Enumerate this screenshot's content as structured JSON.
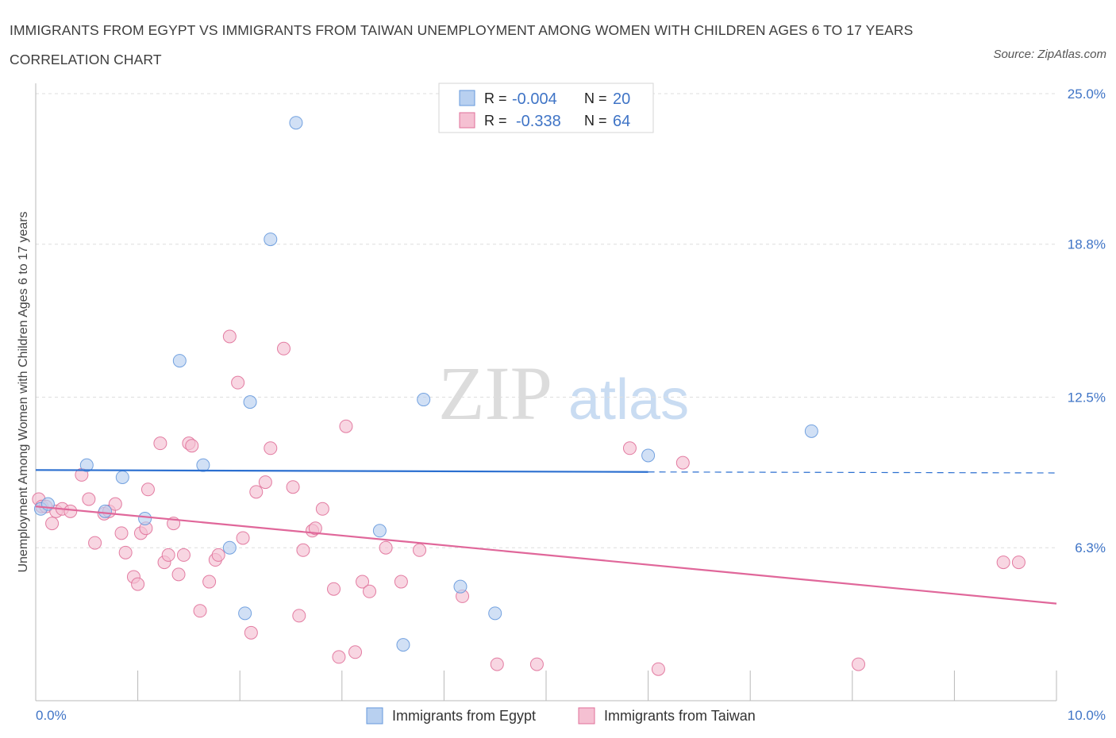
{
  "title": "IMMIGRANTS FROM EGYPT VS IMMIGRANTS FROM TAIWAN UNEMPLOYMENT AMONG WOMEN WITH CHILDREN AGES 6 TO 17 YEARS CORRELATION CHART",
  "source": "Source: ZipAtlas.com",
  "watermark": {
    "zip": "ZIP",
    "atlas": "atlas"
  },
  "colors": {
    "egypt": "#6699dd",
    "egypt_fill": "#b8d0f0",
    "taiwan": "#e07099",
    "taiwan_fill": "#f5c0d2",
    "axis_text": "#3f74c6"
  },
  "legend": {
    "egypt": {
      "r_label": "R =",
      "r_value": "-0.004",
      "n_label": "N =",
      "n_value": "20"
    },
    "taiwan": {
      "r_label": "R =",
      "r_value": "-0.338",
      "n_label": "N =",
      "n_value": "64"
    }
  },
  "chart_data": {
    "type": "scatter",
    "title": "IMMIGRANTS FROM EGYPT VS IMMIGRANTS FROM TAIWAN UNEMPLOYMENT AMONG WOMEN WITH CHILDREN AGES 6 TO 17 YEARS CORRELATION CHART",
    "xlabel": "",
    "ylabel": "Unemployment Among Women with Children Ages 6 to 17 years",
    "xlim": [
      0,
      10
    ],
    "ylim": [
      0,
      25
    ],
    "x_tick_labels": [
      "0.0%",
      "10.0%"
    ],
    "y_ticks": [
      6.3,
      12.5,
      18.8,
      25.0
    ],
    "y_tick_labels": [
      "6.3%",
      "12.5%",
      "18.8%",
      "25.0%"
    ],
    "grid": true,
    "legend_position": "top-center",
    "series": [
      {
        "name": "Immigrants from Egypt",
        "x": [
          0.05,
          0.12,
          0.5,
          0.68,
          0.85,
          1.07,
          1.41,
          1.64,
          1.9,
          2.1,
          2.05,
          2.3,
          2.55,
          3.6,
          3.37,
          3.8,
          4.5,
          4.16,
          6.0,
          7.6
        ],
        "y": [
          7.9,
          8.1,
          9.7,
          7.8,
          9.2,
          7.5,
          14.0,
          9.7,
          6.3,
          12.3,
          3.6,
          19.0,
          23.8,
          2.3,
          7.0,
          12.4,
          3.6,
          4.7,
          10.1,
          11.1
        ],
        "trend": {
          "x": [
            0,
            6,
            10
          ],
          "y": [
            9.5,
            9.42,
            9.38
          ],
          "dashed_after_x": 6.0
        }
      },
      {
        "name": "Immigrants from Taiwan",
        "x": [
          0.03,
          0.06,
          0.1,
          0.16,
          0.2,
          0.26,
          0.34,
          0.45,
          0.52,
          0.58,
          0.67,
          0.72,
          0.78,
          0.84,
          0.88,
          0.96,
          1.0,
          1.03,
          1.08,
          1.1,
          1.22,
          1.26,
          1.3,
          1.35,
          1.4,
          1.45,
          1.5,
          1.53,
          1.61,
          1.7,
          1.76,
          1.79,
          1.9,
          1.98,
          2.03,
          2.11,
          2.16,
          2.25,
          2.3,
          2.43,
          2.52,
          2.58,
          2.62,
          2.71,
          2.74,
          2.81,
          2.92,
          2.97,
          3.04,
          3.13,
          3.2,
          3.27,
          3.43,
          3.58,
          3.76,
          4.18,
          4.52,
          4.91,
          5.82,
          6.1,
          6.34,
          8.06,
          9.48,
          9.63
        ],
        "y": [
          8.3,
          8.0,
          8.0,
          7.3,
          7.8,
          7.9,
          7.8,
          9.3,
          8.3,
          6.5,
          7.7,
          7.8,
          8.1,
          6.9,
          6.1,
          5.1,
          4.8,
          6.9,
          7.1,
          8.7,
          10.6,
          5.7,
          6.0,
          7.3,
          5.2,
          6.0,
          10.6,
          10.5,
          3.7,
          4.9,
          5.8,
          6.0,
          15.0,
          13.1,
          6.7,
          2.8,
          8.6,
          9.0,
          10.4,
          14.5,
          8.8,
          3.5,
          6.2,
          7.0,
          7.1,
          7.9,
          4.6,
          1.8,
          11.3,
          2.0,
          4.9,
          4.5,
          6.3,
          4.9,
          6.2,
          4.3,
          1.5,
          1.5,
          10.4,
          1.3,
          9.8,
          1.5,
          5.7,
          5.7
        ],
        "trend": {
          "x": [
            0,
            10
          ],
          "y": [
            8.0,
            4.0
          ]
        }
      }
    ]
  },
  "bottom_legend": {
    "egypt": "Immigrants from Egypt",
    "taiwan": "Immigrants from Taiwan"
  }
}
